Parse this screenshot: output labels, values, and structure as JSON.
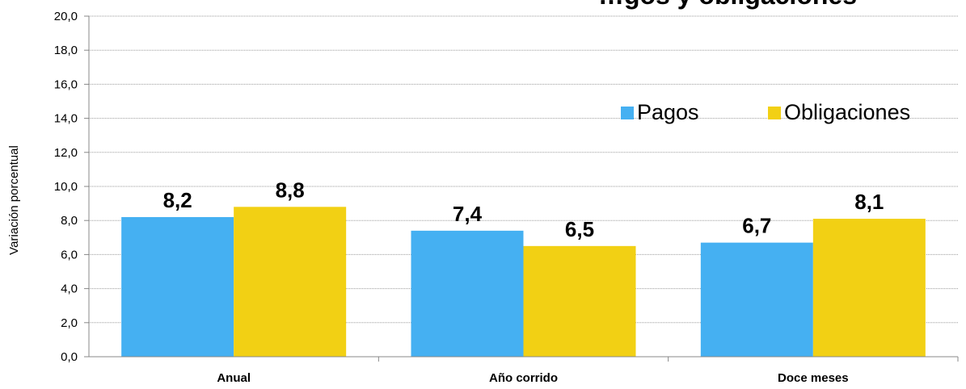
{
  "chart_data": {
    "type": "bar",
    "title": "…gos y obligaciones",
    "ylabel": "Variación porcentual",
    "xlabel": "",
    "ylim": [
      0,
      20
    ],
    "ytick_step": 2,
    "ytick_labels": [
      "0,0",
      "2,0",
      "4,0",
      "6,0",
      "8,0",
      "10,0",
      "12,0",
      "14,0",
      "16,0",
      "18,0",
      "20,0"
    ],
    "grid": true,
    "legend_position": "top-right",
    "categories": [
      "Anual",
      "Año corrido",
      "Doce meses"
    ],
    "series": [
      {
        "name": "Pagos",
        "color": "#45b0f2",
        "values": [
          8.2,
          7.4,
          6.7
        ],
        "labels": [
          "8,2",
          "7,4",
          "6,7"
        ]
      },
      {
        "name": "Obligaciones",
        "color": "#f2d014",
        "values": [
          8.8,
          6.5,
          8.1
        ],
        "labels": [
          "8,8",
          "6,5",
          "8,1"
        ]
      }
    ]
  }
}
